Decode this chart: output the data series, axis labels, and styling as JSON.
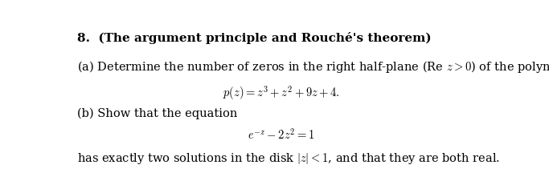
{
  "background_color": "#ffffff",
  "text_color": "#000000",
  "figsize": [
    6.83,
    2.32
  ],
  "dpi": 100
}
